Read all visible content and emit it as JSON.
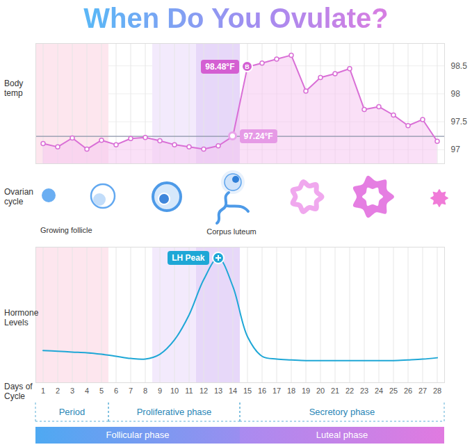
{
  "title": "When Do You Ovulate?",
  "chart_data": [
    {
      "type": "line",
      "ylabel": "Body temp",
      "marker": "circle",
      "color": "#d96fd6",
      "x": [
        1,
        2,
        3,
        4,
        5,
        6,
        7,
        8,
        9,
        10,
        11,
        12,
        13,
        14,
        15,
        16,
        17,
        18,
        19,
        20,
        21,
        22,
        23,
        24,
        25,
        26,
        27,
        28
      ],
      "values": [
        97.11,
        97.05,
        97.21,
        97.01,
        97.17,
        97.09,
        97.2,
        97.22,
        97.16,
        97.09,
        97.05,
        97.01,
        97.07,
        97.24,
        98.48,
        98.55,
        98.62,
        98.69,
        98.05,
        98.29,
        98.36,
        98.45,
        97.72,
        97.77,
        97.62,
        97.43,
        97.54,
        97.15
      ],
      "xlim": [
        0.5,
        28.5
      ],
      "ylim": [
        96.75,
        98.9
      ],
      "xticks": [
        1,
        2,
        3,
        4,
        5,
        6,
        7,
        8,
        9,
        10,
        11,
        12,
        13,
        14,
        15,
        16,
        17,
        18,
        19,
        20,
        21,
        22,
        23,
        24,
        25,
        26,
        27,
        28
      ],
      "yticks": [
        97,
        97.5,
        98,
        98.5
      ],
      "grid": true,
      "tick_labels": "y",
      "hline": 97.24,
      "annotations": [
        {
          "x": 15,
          "y": 98.48,
          "label": "98.48°F",
          "badge": "B"
        },
        {
          "x": 14,
          "y": 97.24,
          "label": "97.24°F"
        }
      ]
    },
    {
      "type": "line",
      "ylabel": "Hormone Levels",
      "xlabel": "Days of Cycle",
      "color": "#1ea7d6",
      "x": [
        1,
        2,
        3,
        4,
        5,
        6,
        7,
        8,
        9,
        10,
        11,
        12,
        13,
        14,
        15,
        16,
        17,
        18,
        19,
        20,
        21,
        22,
        23,
        24,
        25,
        26,
        27,
        28
      ],
      "values": [
        23.7,
        23.2,
        22.6,
        22.1,
        21,
        19.5,
        17.9,
        17.4,
        21,
        31.6,
        50,
        76,
        92,
        71,
        34,
        19.5,
        17.4,
        16.8,
        16.3,
        16.3,
        16.3,
        16.3,
        16.3,
        16.3,
        16.3,
        16.8,
        17.4,
        18.4
      ],
      "xlim": [
        0.5,
        28.5
      ],
      "ylim": [
        0,
        100
      ],
      "xticks": [
        1,
        2,
        3,
        4,
        5,
        6,
        7,
        8,
        9,
        10,
        11,
        12,
        13,
        14,
        15,
        16,
        17,
        18,
        19,
        20,
        21,
        22,
        23,
        24,
        25,
        26,
        27,
        28
      ],
      "yticks": [],
      "grid": true,
      "tick_labels": "x",
      "annotations": [
        {
          "x": 13,
          "y": 92,
          "label": "LH Peak"
        }
      ]
    }
  ],
  "highlight_bands": [
    {
      "from": 0.5,
      "to": 5.5,
      "color": "#fde6ee"
    },
    {
      "from": 8.5,
      "to": 14.5,
      "color": "#f3eafc"
    },
    {
      "from": 11.5,
      "to": 14.5,
      "color": "#e7d8f9"
    }
  ],
  "ovarian_cycle": {
    "label": "Ovarian cycle",
    "stage_labels": [
      "Growing follicle",
      "Corpus luteum"
    ]
  },
  "phases": [
    {
      "label": "Period",
      "from": 0.5,
      "to": 5.5
    },
    {
      "label": "Proliferative phase",
      "from": 5.5,
      "to": 14.5
    },
    {
      "label": "Secretory phase",
      "from": 14.5,
      "to": 28.5
    }
  ],
  "cycle_phases": [
    {
      "label": "Follicular phase",
      "from": 0.5,
      "to": 14.5
    },
    {
      "label": "Luteal phase",
      "from": 14.5,
      "to": 28.5
    }
  ]
}
